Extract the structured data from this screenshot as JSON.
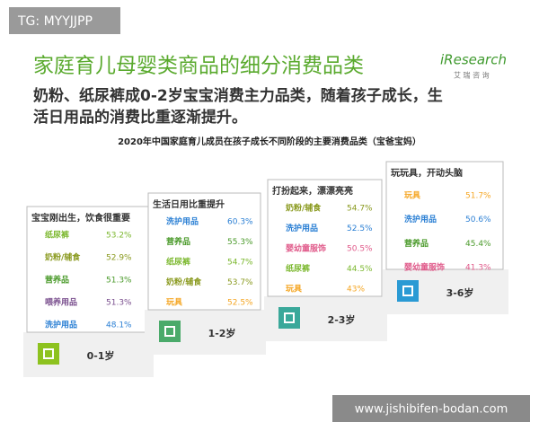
{
  "watermark": "TG: MYYJJPP",
  "logo": {
    "brand": "iResearch",
    "sub": "艾 瑞 咨 询"
  },
  "header": {
    "title": "家庭育儿母婴类商品的细分消费品类",
    "subtitle_lines": [
      "奶粉、纸尿裤成0-2岁宝宝消费主力品类，随着孩子成长，生",
      "活日用品的消费比重逐渐提升。"
    ]
  },
  "chart_title": "2020年中国家庭育儿成员在孩子成长不同阶段的主要消费品类（宝爸宝妈）",
  "stages": [
    {
      "heading": "宝宝刚出生，饮食很重要",
      "age": "0-1岁",
      "items": [
        {
          "label": "纸尿裤",
          "value": "53.2%",
          "color": "#7cb82f"
        },
        {
          "label": "奶粉/辅食",
          "value": "52.9%",
          "color": "#8a9a1f"
        },
        {
          "label": "营养品",
          "value": "51.3%",
          "color": "#4a9a2a"
        },
        {
          "label": "喂养用品",
          "value": "51.3%",
          "color": "#7a4f8e"
        },
        {
          "label": "洗护用品",
          "value": "48.1%",
          "color": "#2a7fd4"
        }
      ]
    },
    {
      "heading": "生活日用比重提升",
      "age": "1-2岁",
      "items": [
        {
          "label": "洗护用品",
          "value": "60.3%",
          "color": "#2a7fd4"
        },
        {
          "label": "营养品",
          "value": "55.3%",
          "color": "#4a9a2a"
        },
        {
          "label": "纸尿裤",
          "value": "54.7%",
          "color": "#7cb82f"
        },
        {
          "label": "奶粉/辅食",
          "value": "53.7%",
          "color": "#8a9a1f"
        },
        {
          "label": "玩具",
          "value": "52.5%",
          "color": "#f5a623"
        }
      ]
    },
    {
      "heading": "打扮起来，漂漂亮亮",
      "age": "2-3岁",
      "items": [
        {
          "label": "奶粉/辅食",
          "value": "54.7%",
          "color": "#8a9a1f"
        },
        {
          "label": "洗护用品",
          "value": "52.5%",
          "color": "#2a7fd4"
        },
        {
          "label": "婴幼童服饰",
          "value": "50.5%",
          "color": "#e05a8a"
        },
        {
          "label": "纸尿裤",
          "value": "44.5%",
          "color": "#7cb82f"
        },
        {
          "label": "玩具",
          "value": "43%",
          "color": "#f5a623"
        }
      ]
    },
    {
      "heading": "玩玩具，开动头脑",
      "age": "3-6岁",
      "items": [
        {
          "label": "玩具",
          "value": "51.7%",
          "color": "#f5a623"
        },
        {
          "label": "洗护用品",
          "value": "50.6%",
          "color": "#2a7fd4"
        },
        {
          "label": "营养品",
          "value": "45.4%",
          "color": "#4a9a2a"
        },
        {
          "label": "婴幼童服饰",
          "value": "41.3%",
          "color": "#e05a8a"
        }
      ]
    }
  ],
  "footer": "www.jishibifen-bodan.com"
}
